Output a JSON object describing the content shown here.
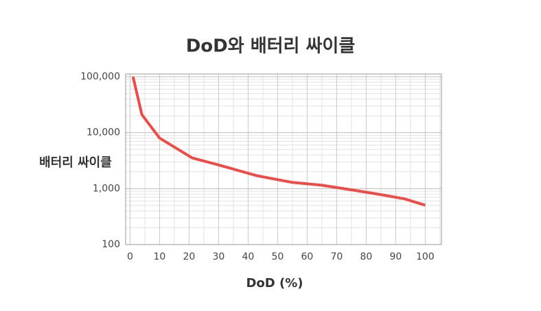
{
  "chart_data": {
    "type": "line",
    "title": "DoD와 배터리 싸이클",
    "x_label": "DoD (%)",
    "y_label": "배터리 싸이클",
    "x": [
      1,
      4,
      10,
      21,
      30,
      43,
      55,
      65,
      75,
      85,
      93,
      100
    ],
    "series": [
      {
        "name": "배터리 싸이클",
        "color": "#f04a46",
        "values": [
          100000,
          21000,
          8000,
          3550,
          2650,
          1700,
          1290,
          1150,
          950,
          780,
          655,
          505
        ]
      }
    ],
    "xlim": [
      -1.5,
      105.5
    ],
    "xticks": [
      0,
      10,
      20,
      30,
      40,
      50,
      60,
      70,
      80,
      90,
      100
    ],
    "ylim": [
      100,
      100000
    ],
    "log_y": true,
    "yticks": [
      100,
      {
        "value": 1000,
        "label": "1,000"
      },
      {
        "value": 10000,
        "label": "10,000"
      },
      {
        "value": 100000,
        "label": "100,000"
      }
    ],
    "grid": true
  }
}
